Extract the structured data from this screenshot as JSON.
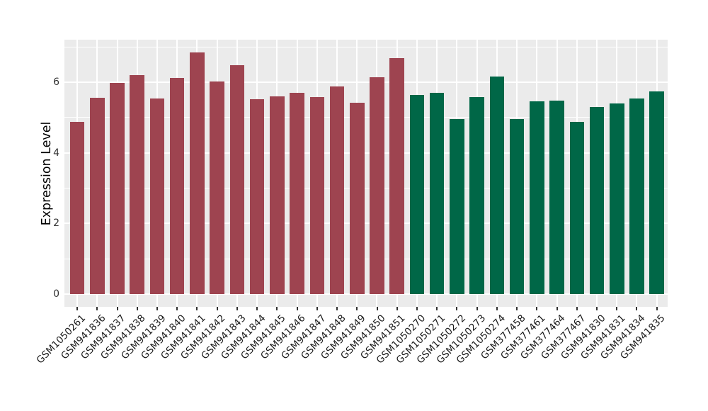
{
  "figure": {
    "background": "#FFFFFF",
    "panel_background": "#EBEBEB",
    "grid_color": "#FFFFFF",
    "tick_color": "#333333",
    "tick_label_color": "#333333",
    "x_label_color": "#1A1A1A",
    "axis_title_color": "#000000"
  },
  "chart_data": {
    "type": "bar",
    "title": "",
    "xlabel": "",
    "ylabel": "Expression Level",
    "ylim": [
      -0.36,
      7.2
    ],
    "yticks": [
      0,
      2,
      4,
      6
    ],
    "yticks_minor": [
      1,
      3,
      5,
      7
    ],
    "grid": true,
    "legend_position": "none",
    "x_tick_rotation": 45,
    "categories": [
      "GSM1050261",
      "GSM941836",
      "GSM941837",
      "GSM941838",
      "GSM941839",
      "GSM941840",
      "GSM941841",
      "GSM941842",
      "GSM941843",
      "GSM941844",
      "GSM941845",
      "GSM941846",
      "GSM941847",
      "GSM941848",
      "GSM941849",
      "GSM941850",
      "GSM941851",
      "GSM1050270",
      "GSM1050271",
      "GSM1050272",
      "GSM1050273",
      "GSM1050274",
      "GSM377458",
      "GSM377461",
      "GSM377464",
      "GSM377467",
      "GSM941830",
      "GSM941831",
      "GSM941834",
      "GSM941835"
    ],
    "values": [
      4.87,
      5.55,
      5.98,
      6.2,
      5.54,
      6.12,
      6.84,
      6.02,
      6.48,
      5.52,
      5.6,
      5.69,
      5.58,
      5.88,
      5.42,
      6.13,
      6.67,
      5.64,
      5.7,
      4.96,
      5.57,
      6.15,
      4.95,
      5.45,
      5.48,
      4.87,
      5.3,
      5.4,
      5.54,
      5.74
    ],
    "groups": [
      "group1",
      "group1",
      "group1",
      "group1",
      "group1",
      "group1",
      "group1",
      "group1",
      "group1",
      "group1",
      "group1",
      "group1",
      "group1",
      "group1",
      "group1",
      "group1",
      "group1",
      "group2",
      "group2",
      "group2",
      "group2",
      "group2",
      "group2",
      "group2",
      "group2",
      "group2",
      "group2",
      "group2",
      "group2",
      "group2"
    ],
    "group_colors": {
      "group1": "#9E4450",
      "group2": "#006747"
    }
  }
}
